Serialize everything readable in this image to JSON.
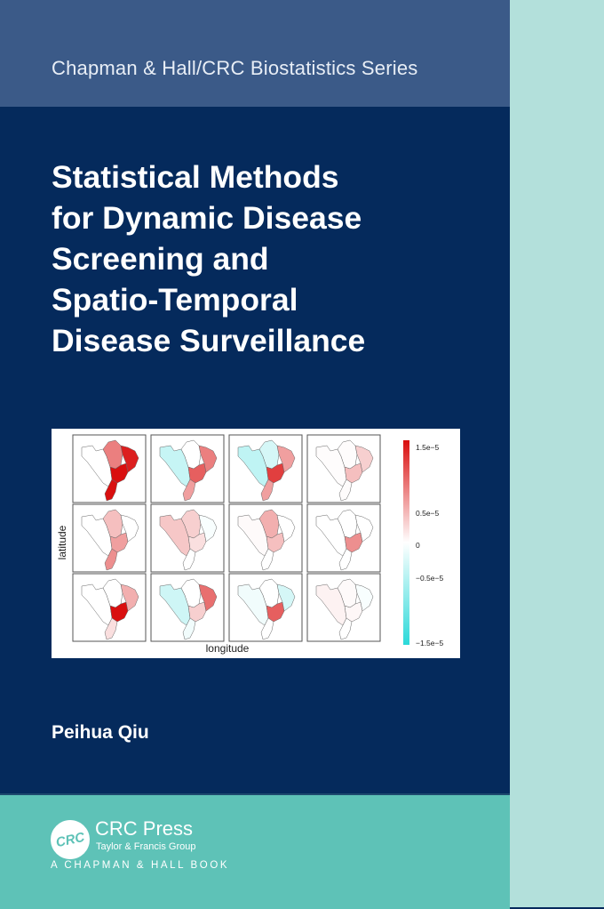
{
  "series": "Chapman & Hall/CRC Biostatistics Series",
  "title_lines": [
    "Statistical Methods",
    "for Dynamic Disease",
    "Screening and",
    "Spatio-Temporal",
    "Disease Surveillance"
  ],
  "figure": {
    "xlabel": "longitude",
    "ylabel": "latitude",
    "colorbar": {
      "ticks": [
        "1.5e−5",
        "0.5e−5",
        "0",
        "−0.5e−5",
        "−1.5e−5"
      ],
      "max_color": "#d90f0f",
      "mid_color": "#ffffff",
      "min_color": "#2bd9d9"
    },
    "panels": [
      {
        "west": 0,
        "north": 0.8,
        "center": 1.5,
        "east": 1.4,
        "south": 1.5
      },
      {
        "west": -0.4,
        "north": 0,
        "center": 1.0,
        "east": 0.8,
        "south": 0.6
      },
      {
        "west": -0.45,
        "north": -0.3,
        "center": 1.2,
        "east": 0.6,
        "south": 0.6
      },
      {
        "west": 0.02,
        "north": 0.02,
        "center": 0.4,
        "east": 0.3,
        "south": 0.02
      },
      {
        "west": 0,
        "north": 0.4,
        "center": 0.6,
        "east": 0,
        "south": 0.7
      },
      {
        "west": 0.35,
        "north": 0.3,
        "center": 0.2,
        "east": -0.05,
        "south": 0
      },
      {
        "west": 0.03,
        "north": 0.5,
        "center": 0.4,
        "east": 0,
        "south": 0
      },
      {
        "west": 0,
        "north": 0,
        "center": 0.7,
        "east": 0,
        "south": 0
      },
      {
        "west": 0,
        "north": 0,
        "center": 1.5,
        "east": 0.5,
        "south": 0.2
      },
      {
        "west": -0.35,
        "north": 0,
        "center": 0.3,
        "east": 0.9,
        "south": -0.1
      },
      {
        "west": -0.1,
        "north": 0,
        "center": 1.0,
        "east": -0.3,
        "south": 0
      },
      {
        "west": 0.08,
        "north": 0.03,
        "center": 0.05,
        "east": -0.05,
        "south": 0
      }
    ]
  },
  "author": "Peihua Qiu",
  "publisher": {
    "logo": "CRC",
    "name": "CRC Press",
    "group": "Taylor & Francis Group",
    "imprint": "A CHAPMAN & HALL BOOK"
  }
}
